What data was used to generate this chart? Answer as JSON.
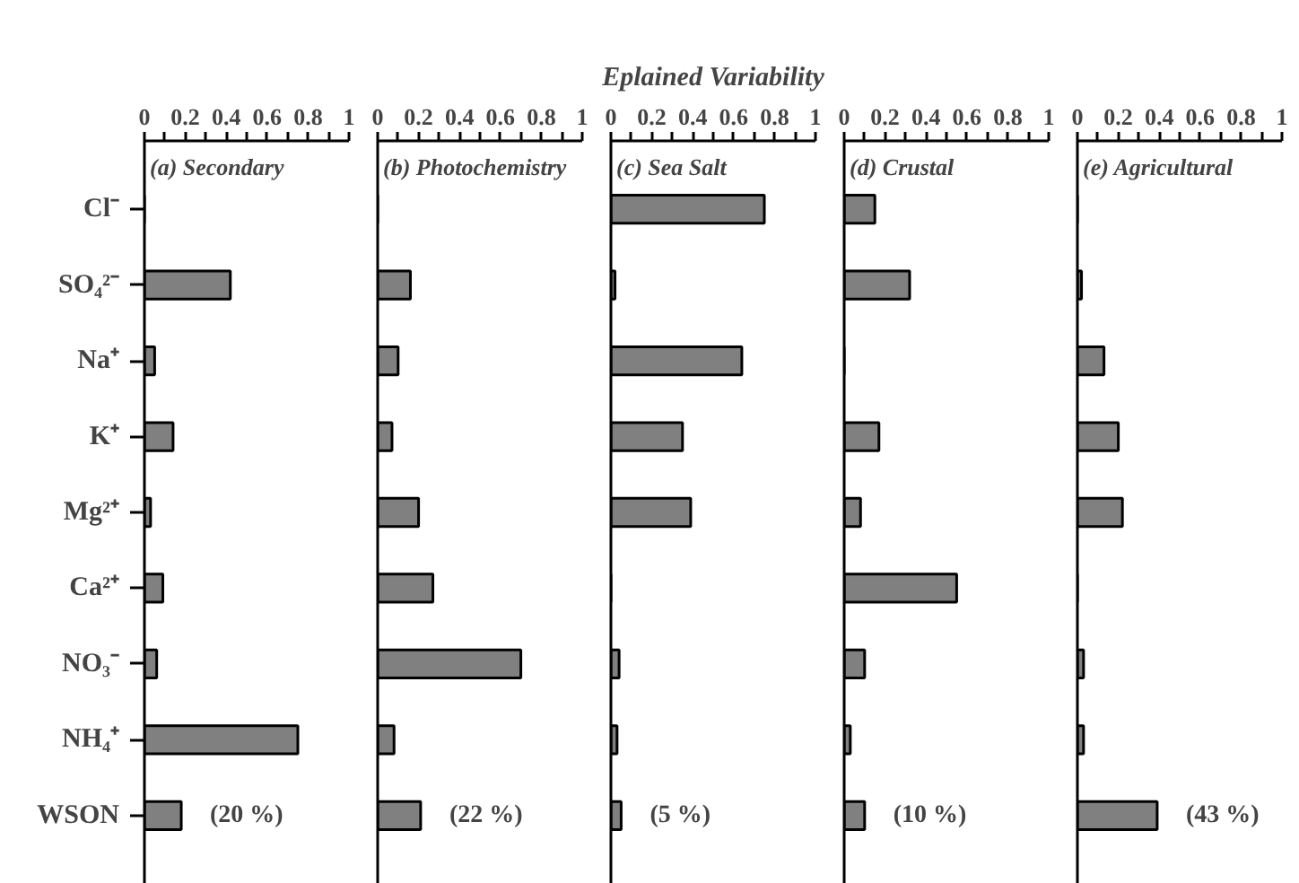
{
  "chart_data": [
    {
      "type": "bar",
      "orientation": "horizontal",
      "title": "(a) Secondary",
      "categories": [
        "Cl⁻",
        "SO₄²⁻",
        "Na⁺",
        "K⁺",
        "Mg²⁺",
        "Ca²⁺",
        "NO₃⁻",
        "NH₄⁺",
        "WSON"
      ],
      "values": [
        0,
        0.42,
        0.05,
        0.14,
        0.03,
        0.09,
        0.06,
        0.75,
        0.18
      ],
      "color": "#808080",
      "xlim": [
        0,
        1
      ],
      "xticks": [
        0,
        {
          "value": 0.1,
          "label": null
        },
        0.2,
        {
          "value": 0.3,
          "label": null
        },
        0.4,
        {
          "value": 0.5,
          "label": null
        },
        0.6,
        {
          "value": 0.7,
          "label": null
        },
        0.8,
        {
          "value": 0.9,
          "label": null
        },
        1
      ],
      "annotations": [
        "(20 %)"
      ],
      "grid": false
    },
    {
      "type": "bar",
      "orientation": "horizontal",
      "title": "(b) Photochemistry",
      "categories": [
        null,
        null,
        null,
        null,
        null,
        null,
        null,
        null,
        null
      ],
      "values": [
        0,
        0.16,
        0.1,
        0.07,
        0.2,
        0.27,
        0.7,
        0.08,
        0.21
      ],
      "color": "#808080",
      "xlim": [
        0,
        1
      ],
      "xticks": [
        0,
        {
          "value": 0.1,
          "label": null
        },
        0.2,
        {
          "value": 0.3,
          "label": null
        },
        0.4,
        {
          "value": 0.5,
          "label": null
        },
        0.6,
        {
          "value": 0.7,
          "label": null
        },
        0.8,
        {
          "value": 0.9,
          "label": null
        },
        1
      ],
      "annotations": [
        "(22 %)"
      ],
      "tick_labels": "x",
      "grid": false
    },
    {
      "type": "bar",
      "orientation": "horizontal",
      "title": "(c) Sea Salt",
      "xlabel": "Eplained Variability",
      "categories": [
        null,
        null,
        null,
        null,
        null,
        null,
        null,
        null,
        null
      ],
      "values": [
        0.75,
        0.02,
        0.64,
        0.35,
        0.39,
        0,
        0.04,
        0.03,
        0.05
      ],
      "color": "#808080",
      "xlim": [
        0,
        1
      ],
      "xticks": [
        0,
        {
          "value": 0.1,
          "label": null
        },
        0.2,
        {
          "value": 0.3,
          "label": null
        },
        0.4,
        {
          "value": 0.5,
          "label": null
        },
        0.6,
        {
          "value": 0.7,
          "label": null
        },
        0.8,
        {
          "value": 0.9,
          "label": null
        },
        1
      ],
      "annotations": [
        "(5 %)"
      ],
      "tick_labels": "x",
      "grid": false
    },
    {
      "type": "bar",
      "orientation": "horizontal",
      "title": "(d) Crustal",
      "categories": [
        null,
        null,
        null,
        null,
        null,
        null,
        null,
        null,
        null
      ],
      "values": [
        0.15,
        0.32,
        0,
        0.17,
        0.08,
        0.55,
        0.1,
        0.03,
        0.1
      ],
      "color": "#808080",
      "xlim": [
        0,
        1
      ],
      "xticks": [
        0,
        {
          "value": 0.1,
          "label": null
        },
        0.2,
        {
          "value": 0.3,
          "label": null
        },
        0.4,
        {
          "value": 0.5,
          "label": null
        },
        0.6,
        {
          "value": 0.7,
          "label": null
        },
        0.8,
        {
          "value": 0.9,
          "label": null
        },
        1
      ],
      "annotations": [
        "(10 %)"
      ],
      "tick_labels": "x",
      "grid": false
    },
    {
      "type": "bar",
      "orientation": "horizontal",
      "title": "(e)  Agricultural",
      "categories": [
        null,
        null,
        null,
        null,
        null,
        null,
        null,
        null,
        null
      ],
      "values": [
        0,
        0.02,
        0.13,
        0.2,
        0.22,
        0,
        0.03,
        0.03,
        0.39
      ],
      "color": "#808080",
      "xlim": [
        0,
        1
      ],
      "xticks": [
        0,
        {
          "value": 0.1,
          "label": null
        },
        0.2,
        {
          "value": 0.3,
          "label": null
        },
        0.4,
        {
          "value": 0.5,
          "label": null
        },
        0.6,
        {
          "value": 0.7,
          "label": null
        },
        0.8,
        {
          "value": 0.9,
          "label": null
        },
        1
      ],
      "annotations": [
        "(43 %)"
      ],
      "tick_labels": "x",
      "grid": false
    }
  ]
}
